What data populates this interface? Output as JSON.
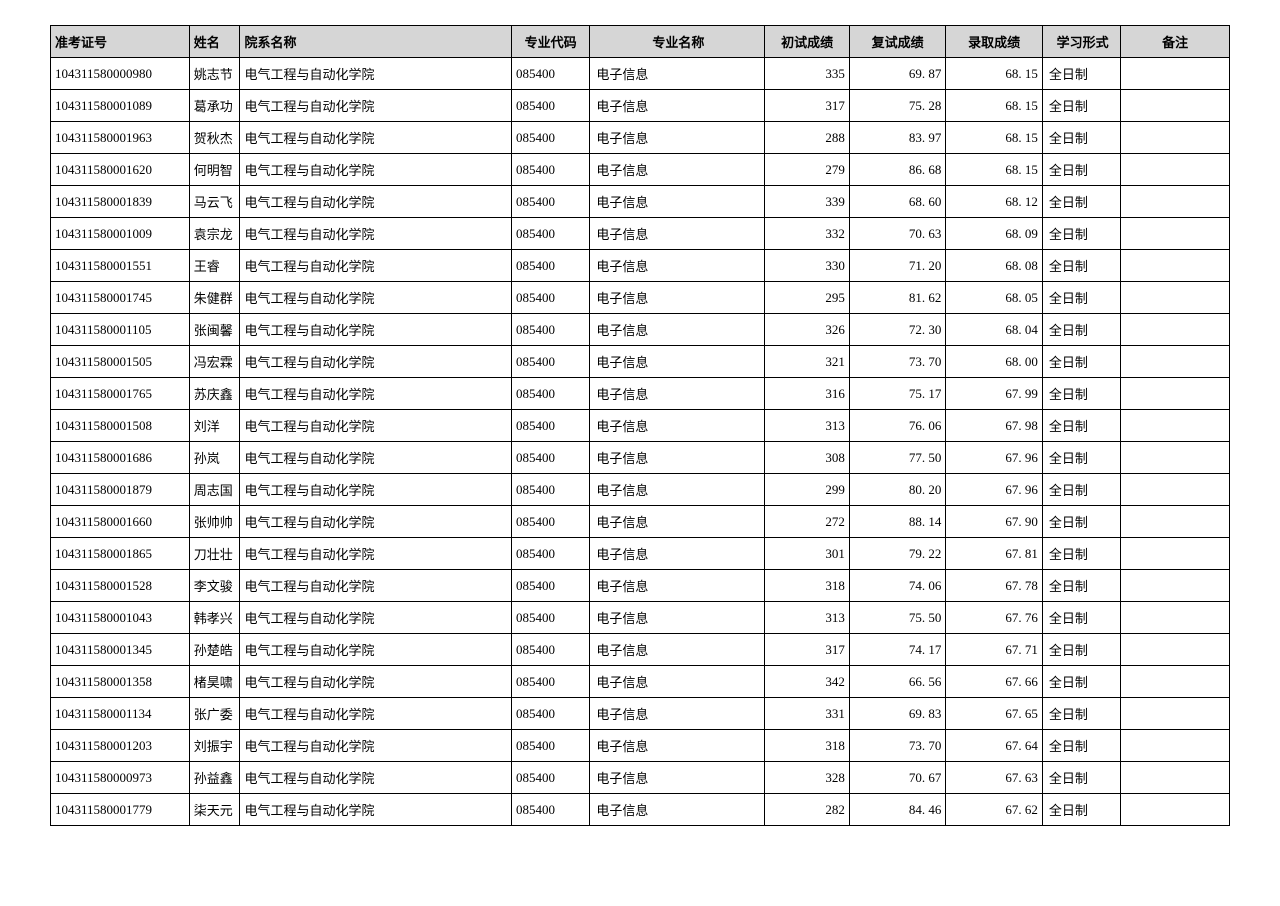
{
  "table": {
    "columns": [
      "准考证号",
      "姓名",
      "院系名称",
      "专业代码",
      "专业名称",
      "初试成绩",
      "复试成绩",
      "录取成绩",
      "学习形式",
      "备注"
    ],
    "rows": [
      [
        "104311580000980",
        "姚志节",
        "电气工程与自动化学院",
        "085400",
        "电子信息",
        "335",
        "69. 87",
        "68. 15",
        "全日制",
        ""
      ],
      [
        "104311580001089",
        "葛承功",
        "电气工程与自动化学院",
        "085400",
        "电子信息",
        "317",
        "75. 28",
        "68. 15",
        "全日制",
        ""
      ],
      [
        "104311580001963",
        "贺秋杰",
        "电气工程与自动化学院",
        "085400",
        "电子信息",
        "288",
        "83. 97",
        "68. 15",
        "全日制",
        ""
      ],
      [
        "104311580001620",
        "何明智",
        "电气工程与自动化学院",
        "085400",
        "电子信息",
        "279",
        "86. 68",
        "68. 15",
        "全日制",
        ""
      ],
      [
        "104311580001839",
        "马云飞",
        "电气工程与自动化学院",
        "085400",
        "电子信息",
        "339",
        "68. 60",
        "68. 12",
        "全日制",
        ""
      ],
      [
        "104311580001009",
        "袁宗龙",
        "电气工程与自动化学院",
        "085400",
        "电子信息",
        "332",
        "70. 63",
        "68. 09",
        "全日制",
        ""
      ],
      [
        "104311580001551",
        "王睿",
        "电气工程与自动化学院",
        "085400",
        "电子信息",
        "330",
        "71. 20",
        "68. 08",
        "全日制",
        ""
      ],
      [
        "104311580001745",
        "朱健群",
        "电气工程与自动化学院",
        "085400",
        "电子信息",
        "295",
        "81. 62",
        "68. 05",
        "全日制",
        ""
      ],
      [
        "104311580001105",
        "张闽馨",
        "电气工程与自动化学院",
        "085400",
        "电子信息",
        "326",
        "72. 30",
        "68. 04",
        "全日制",
        ""
      ],
      [
        "104311580001505",
        "冯宏霖",
        "电气工程与自动化学院",
        "085400",
        "电子信息",
        "321",
        "73. 70",
        "68. 00",
        "全日制",
        ""
      ],
      [
        "104311580001765",
        "苏庆鑫",
        "电气工程与自动化学院",
        "085400",
        "电子信息",
        "316",
        "75. 17",
        "67. 99",
        "全日制",
        ""
      ],
      [
        "104311580001508",
        "刘洋",
        "电气工程与自动化学院",
        "085400",
        "电子信息",
        "313",
        "76. 06",
        "67. 98",
        "全日制",
        ""
      ],
      [
        "104311580001686",
        "孙岚",
        "电气工程与自动化学院",
        "085400",
        "电子信息",
        "308",
        "77. 50",
        "67. 96",
        "全日制",
        ""
      ],
      [
        "104311580001879",
        "周志国",
        "电气工程与自动化学院",
        "085400",
        "电子信息",
        "299",
        "80. 20",
        "67. 96",
        "全日制",
        ""
      ],
      [
        "104311580001660",
        "张帅帅",
        "电气工程与自动化学院",
        "085400",
        "电子信息",
        "272",
        "88. 14",
        "67. 90",
        "全日制",
        ""
      ],
      [
        "104311580001865",
        "刀壮壮",
        "电气工程与自动化学院",
        "085400",
        "电子信息",
        "301",
        "79. 22",
        "67. 81",
        "全日制",
        ""
      ],
      [
        "104311580001528",
        "李文骏",
        "电气工程与自动化学院",
        "085400",
        "电子信息",
        "318",
        "74. 06",
        "67. 78",
        "全日制",
        ""
      ],
      [
        "104311580001043",
        "韩孝兴",
        "电气工程与自动化学院",
        "085400",
        "电子信息",
        "313",
        "75. 50",
        "67. 76",
        "全日制",
        ""
      ],
      [
        "104311580001345",
        "孙楚皓",
        "电气工程与自动化学院",
        "085400",
        "电子信息",
        "317",
        "74. 17",
        "67. 71",
        "全日制",
        ""
      ],
      [
        "104311580001358",
        "楮昊啸",
        "电气工程与自动化学院",
        "085400",
        "电子信息",
        "342",
        "66. 56",
        "67. 66",
        "全日制",
        ""
      ],
      [
        "104311580001134",
        "张广委",
        "电气工程与自动化学院",
        "085400",
        "电子信息",
        "331",
        "69. 83",
        "67. 65",
        "全日制",
        ""
      ],
      [
        "104311580001203",
        "刘振宇",
        "电气工程与自动化学院",
        "085400",
        "电子信息",
        "318",
        "73. 70",
        "67. 64",
        "全日制",
        ""
      ],
      [
        "104311580000973",
        "孙益鑫",
        "电气工程与自动化学院",
        "085400",
        "电子信息",
        "328",
        "70. 67",
        "67. 63",
        "全日制",
        ""
      ],
      [
        "104311580001779",
        "柒天元",
        "电气工程与自动化学院",
        "085400",
        "电子信息",
        "282",
        "84. 46",
        "67. 62",
        "全日制",
        ""
      ]
    ],
    "colClasses": [
      "col-id",
      "col-name",
      "col-dept",
      "col-mcode",
      "col-major",
      "col-score1",
      "col-score2",
      "col-score3",
      "col-mode",
      "col-note"
    ]
  }
}
